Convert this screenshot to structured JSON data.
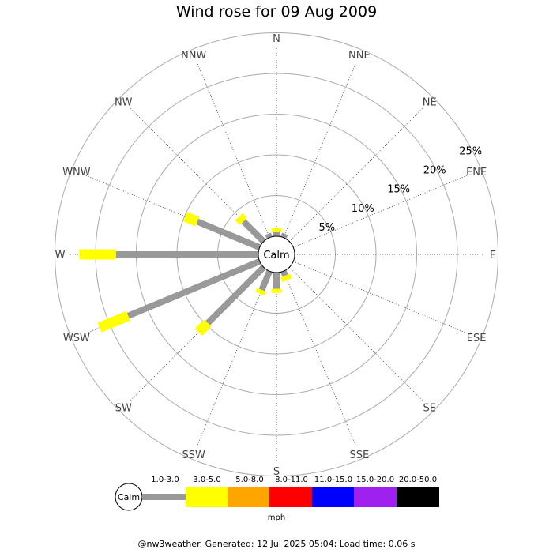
{
  "chart_data": {
    "type": "wind-rose",
    "title": "Wind rose for 09 Aug 2009",
    "directions": [
      "N",
      "NNE",
      "NE",
      "ENE",
      "E",
      "ESE",
      "SE",
      "SSE",
      "S",
      "SSW",
      "SW",
      "WSW",
      "W",
      "WNW",
      "NW",
      "NNW"
    ],
    "ring_labels": [
      "5%",
      "10%",
      "15%",
      "20%",
      "25%"
    ],
    "rings": [
      5,
      10,
      15,
      20,
      25
    ],
    "center_label": "Calm",
    "speed_bins": [
      {
        "name": "1.0-3.0",
        "color": "#999999"
      },
      {
        "name": "3.0-5.0",
        "color": "#ffff00"
      },
      {
        "name": "5.0-8.0",
        "color": "#ffa500"
      },
      {
        "name": "8.0-11.0",
        "color": "#ff0000"
      },
      {
        "name": "11.0-15.0",
        "color": "#0000ff"
      },
      {
        "name": "15.0-20.0",
        "color": "#a020f0"
      },
      {
        "name": "20.0-50.0",
        "color": "#000000"
      }
    ],
    "series": [
      {
        "name": "1.0-3.0",
        "values": [
          0.5,
          0.5,
          0,
          0,
          0,
          0,
          0,
          0.6,
          2,
          2.5,
          9.7,
          17.5,
          17.5,
          8.3,
          3.5,
          0.5
        ]
      },
      {
        "name": "3.0-5.0",
        "values": [
          0.5,
          0,
          0,
          0,
          0,
          0,
          0,
          0.6,
          0.5,
          0.5,
          1.6,
          3.8,
          4.5,
          1.6,
          0.8,
          0
        ]
      }
    ],
    "units": "mph"
  },
  "footer": "@nw3weather. Generated: 12 Jul 2025 05:04; Load time: 0.06 s"
}
